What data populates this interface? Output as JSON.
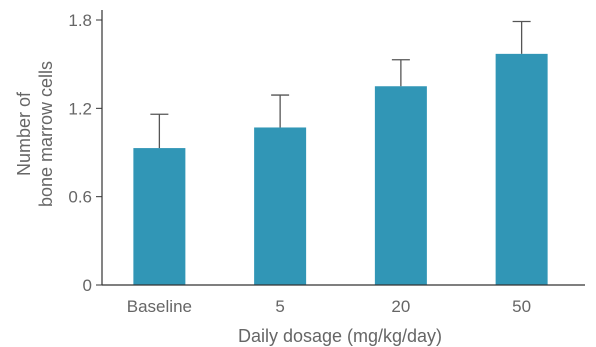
{
  "chart_data": {
    "type": "bar",
    "title": "",
    "xlabel": "Daily dosage (mg/kg/day)",
    "ylabel_lines": [
      "Number of",
      "bone marrow cells"
    ],
    "categories": [
      "Baseline",
      "5",
      "20",
      "50"
    ],
    "values": [
      0.93,
      1.07,
      1.35,
      1.57
    ],
    "error_upper": [
      1.16,
      1.29,
      1.53,
      1.79
    ],
    "ylim": [
      0,
      1.8
    ],
    "yticks": [
      0,
      0.6,
      1.2,
      1.8
    ],
    "ytick_labels": [
      "0",
      "0.6",
      "1.2",
      "1.8"
    ],
    "grid": false,
    "legend": "none",
    "bar_color": "#3196b6",
    "error_bar_color": "#555555",
    "axis_color": "#333333",
    "text_color": "#666666"
  }
}
